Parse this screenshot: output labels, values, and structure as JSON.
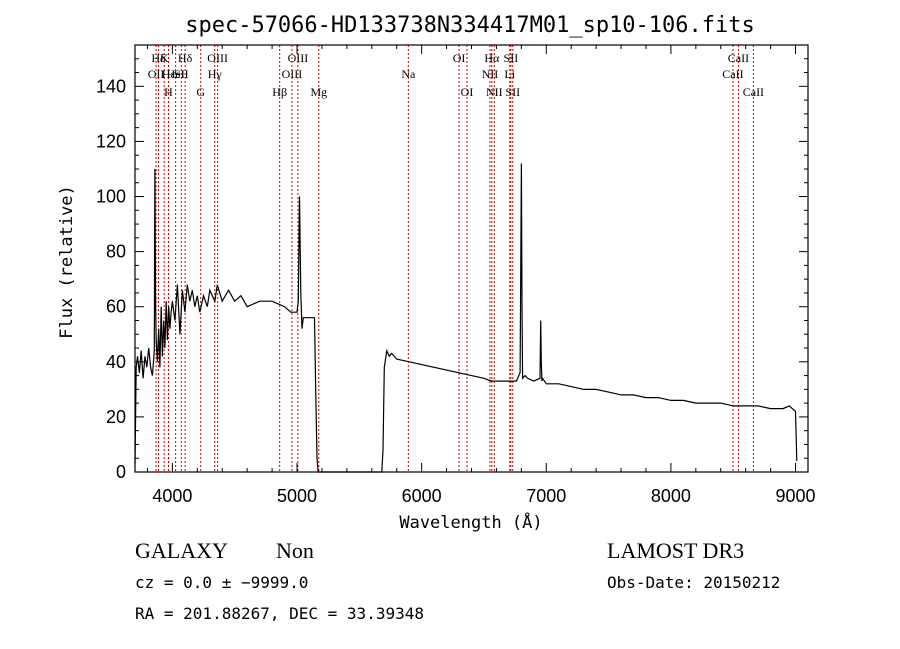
{
  "chart_data": {
    "type": "line",
    "title": "spec-57066-HD133738N334417M01_sp10-106.fits",
    "xlabel": "Wavelength (Å)",
    "ylabel": "Flux (relative)",
    "xlim": [
      3700,
      9100
    ],
    "ylim": [
      0,
      155
    ],
    "xticks": [
      4000,
      5000,
      6000,
      7000,
      8000,
      9000
    ],
    "yticks": [
      0,
      20,
      40,
      60,
      80,
      100,
      120,
      140
    ],
    "grid": false,
    "series": [
      {
        "x": [
          3700,
          3710,
          3720,
          3735,
          3750,
          3765,
          3780,
          3795,
          3810,
          3825,
          3840,
          3855,
          3860,
          3865,
          3870,
          3880,
          3890,
          3900,
          3910,
          3920,
          3930,
          3940,
          3950,
          3960,
          3970,
          3980,
          3990,
          4000,
          4020,
          4040,
          4060,
          4080,
          4100,
          4120,
          4140,
          4160,
          4180,
          4200,
          4220,
          4250,
          4280,
          4300,
          4340,
          4360,
          4400,
          4450,
          4500,
          4550,
          4600,
          4700,
          4800,
          4900,
          4950,
          5000,
          5010,
          5020,
          5030,
          5040,
          5050,
          5100,
          5140,
          5150,
          5160,
          5170,
          5200,
          5400,
          5600,
          5680,
          5690,
          5700,
          5720,
          5740,
          5760,
          5800,
          5900,
          6000,
          6100,
          6200,
          6300,
          6400,
          6500,
          6560,
          6600,
          6700,
          6760,
          6790,
          6800,
          6805,
          6810,
          6830,
          6850,
          6900,
          6950,
          6955,
          6960,
          6965,
          6970,
          7000,
          7100,
          7200,
          7300,
          7400,
          7500,
          7600,
          7700,
          7800,
          7900,
          8000,
          8100,
          8200,
          8300,
          8400,
          8500,
          8600,
          8700,
          8800,
          8900,
          8950,
          9000,
          9010
        ],
        "values": [
          3,
          38,
          42,
          36,
          44,
          34,
          42,
          38,
          45,
          38,
          35,
          44,
          110,
          60,
          48,
          40,
          52,
          38,
          60,
          42,
          55,
          45,
          62,
          48,
          60,
          52,
          58,
          62,
          55,
          68,
          50,
          66,
          58,
          68,
          62,
          66,
          60,
          64,
          58,
          64,
          60,
          66,
          62,
          68,
          62,
          66,
          62,
          64,
          60,
          62,
          62,
          60,
          58,
          58,
          62,
          100,
          65,
          52,
          56,
          56,
          56,
          30,
          5,
          0,
          0,
          0,
          0,
          0,
          8,
          38,
          44,
          42,
          43,
          41,
          40,
          39,
          38,
          37,
          36,
          35,
          34,
          33,
          33,
          33,
          33,
          36,
          112,
          60,
          34,
          35,
          34,
          33,
          34,
          55,
          40,
          33,
          34,
          32,
          32,
          31,
          30,
          30,
          29,
          28,
          28,
          27,
          27,
          26,
          26,
          25,
          25,
          25,
          24,
          24,
          24,
          23,
          23,
          24,
          22,
          4
        ]
      }
    ],
    "spectral_lines": [
      {
        "wavelength": 3869,
        "label": "OII",
        "row": 2
      },
      {
        "wavelength": 3889,
        "label": "Hδ",
        "row": 1
      },
      {
        "wavelength": 3934,
        "label": "K",
        "row": 1
      },
      {
        "wavelength": 3968,
        "label": "H",
        "row": 3
      },
      {
        "wavelength": 3970,
        "label": "Hε",
        "row": 2
      },
      {
        "wavelength": 4026,
        "label": "HeI",
        "row": 2
      },
      {
        "wavelength": 4072,
        "label": "SII",
        "row": 2
      },
      {
        "wavelength": 4102,
        "label": "Hδ",
        "row": 1
      },
      {
        "wavelength": 4227,
        "label": "G",
        "row": 3
      },
      {
        "wavelength": 4340,
        "label": "Hγ",
        "row": 2
      },
      {
        "wavelength": 4363,
        "label": "OIII",
        "row": 1
      },
      {
        "wavelength": 4861,
        "label": "Hβ",
        "row": 3
      },
      {
        "wavelength": 4959,
        "label": "OIII",
        "row": 2
      },
      {
        "wavelength": 5007,
        "label": "OIII",
        "row": 1
      },
      {
        "wavelength": 5175,
        "label": "Mg",
        "row": 3
      },
      {
        "wavelength": 5893,
        "label": "Na",
        "row": 2
      },
      {
        "wavelength": 6300,
        "label": "OI",
        "row": 1
      },
      {
        "wavelength": 6364,
        "label": "OI",
        "row": 3
      },
      {
        "wavelength": 6548,
        "label": "NII",
        "row": 2
      },
      {
        "wavelength": 6563,
        "label": "Hα",
        "row": 1
      },
      {
        "wavelength": 6583,
        "label": "NII",
        "row": 3
      },
      {
        "wavelength": 6707,
        "label": "Li",
        "row": 2
      },
      {
        "wavelength": 6716,
        "label": "SII",
        "row": 1
      },
      {
        "wavelength": 6731,
        "label": "SII",
        "row": 3
      },
      {
        "wavelength": 8498,
        "label": "CaII",
        "row": 2
      },
      {
        "wavelength": 8542,
        "label": "CaII",
        "row": 1
      },
      {
        "wavelength": 8662,
        "label": "CaII",
        "row": 3
      }
    ],
    "line_color": "#000000",
    "marker_color": "#cc0000"
  },
  "info": {
    "class": "GALAXY",
    "subclass": "Non",
    "survey": "LAMOST DR3",
    "cz": "cz = 0.0 ± −9999.0",
    "obs_date": "Obs-Date: 20150212",
    "radec": "RA = 201.88267, DEC =  33.39348"
  }
}
